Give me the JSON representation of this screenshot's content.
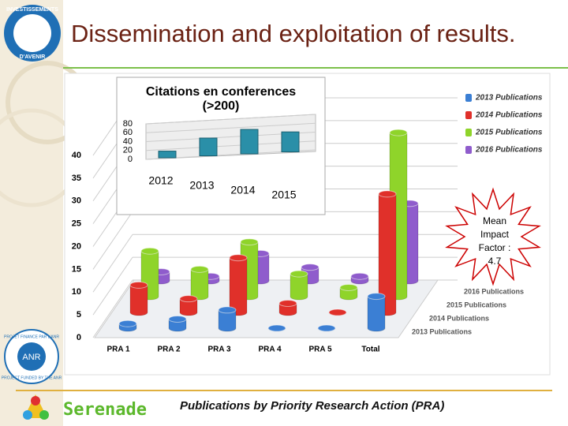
{
  "title": "Dissemination and exploitation of results.",
  "footer": "Publications by Priority Research Action (PRA)",
  "logos": {
    "top": [
      "INVESTISSEMENTS",
      "D'AVENIR"
    ],
    "anr": [
      "ANR",
      "PROJET FINANCE PAR L'ANR",
      "PROJECT FUNDED BY THE ANR"
    ],
    "project": "Serenade"
  },
  "chart_data": [
    {
      "type": "bar3d",
      "categories": [
        "PRA 1",
        "PRA 2",
        "PRA 3",
        "PRA 4",
        "PRA 5",
        "Total"
      ],
      "series": [
        {
          "name": "2013 Publications",
          "color": "#3b7fd4",
          "values": [
            1,
            2,
            4,
            0,
            0,
            7
          ]
        },
        {
          "name": "2014 Publications",
          "color": "#e0302a",
          "values": [
            6,
            3,
            12,
            2,
            0,
            26
          ]
        },
        {
          "name": "2015 Publications",
          "color": "#8fd42a",
          "values": [
            10,
            6,
            12,
            5,
            2,
            36
          ]
        },
        {
          "name": "2016 Publications",
          "color": "#8f5ccc",
          "values": [
            2,
            1,
            6,
            3,
            1,
            17
          ]
        }
      ],
      "ylim": [
        0,
        40
      ],
      "yticks": [
        0,
        5,
        10,
        15,
        20,
        25,
        30,
        35,
        40
      ],
      "grid": true,
      "legend": "right",
      "annotation": "Mean Impact Factor : 4.7"
    },
    {
      "type": "bar3d-inset",
      "title": "Citations en conferences (>200)",
      "categories": [
        "2012",
        "2013",
        "2014",
        "2015"
      ],
      "values": [
        15,
        40,
        55,
        45
      ],
      "color": "#2a8fa8",
      "ylim": [
        0,
        80
      ],
      "yticks": [
        0,
        20,
        40,
        60,
        80
      ]
    }
  ]
}
